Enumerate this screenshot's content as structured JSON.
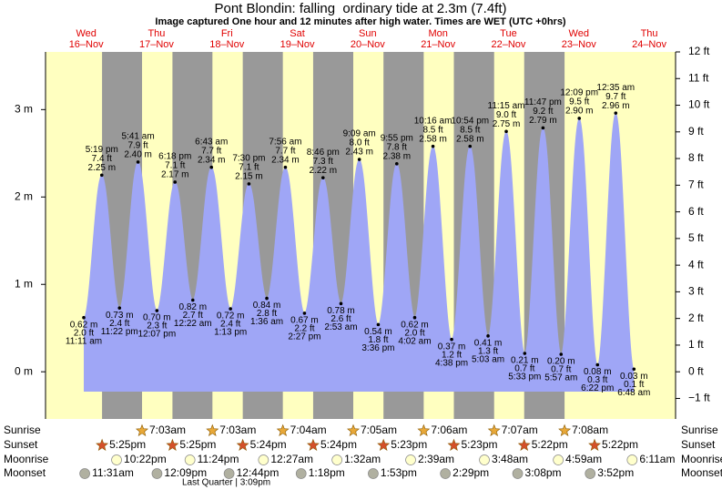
{
  "chart_data": {
    "type": "tide",
    "title": "Pont Blondin: falling  ordinary tide at 2.3m (7.4ft)",
    "subtitle": "Image captured One hour and 12 minutes after high water. Times are WET (UTC +0hrs)",
    "days": [
      {
        "weekday": "Wed",
        "date": "16–Nov"
      },
      {
        "weekday": "Thu",
        "date": "17–Nov"
      },
      {
        "weekday": "Fri",
        "date": "18–Nov"
      },
      {
        "weekday": "Sat",
        "date": "19–Nov"
      },
      {
        "weekday": "Sun",
        "date": "20–Nov"
      },
      {
        "weekday": "Mon",
        "date": "21–Nov"
      },
      {
        "weekday": "Tue",
        "date": "22–Nov"
      },
      {
        "weekday": "Wed",
        "date": "23–Nov"
      },
      {
        "weekday": "Thu",
        "date": "24–Nov"
      }
    ],
    "x": [
      "11:11 am",
      "5:19 pm",
      "11:22 pm",
      "5:41 am",
      "12:07 pm",
      "6:18 pm",
      "12:22 am",
      "6:43 am",
      "1:13 pm",
      "7:30 pm",
      "1:36 am",
      "7:56 am",
      "2:27 pm",
      "8:46 pm",
      "2:53 am",
      "9:09 am",
      "3:36 pm",
      "9:55 pm",
      "4:02 am",
      "10:16 am",
      "4:38 pm",
      "10:54 pm",
      "5:03 am",
      "11:15 am",
      "5:33 pm",
      "11:47 pm",
      "5:57 am",
      "12:09 pm",
      "6:22 pm",
      "12:35 am",
      "6:48 am"
    ],
    "values": [
      0.62,
      2.25,
      0.73,
      2.4,
      0.7,
      2.17,
      0.82,
      2.34,
      0.72,
      2.15,
      0.84,
      2.34,
      0.67,
      2.22,
      0.78,
      2.43,
      0.54,
      2.38,
      0.62,
      2.58,
      0.37,
      2.58,
      0.41,
      2.75,
      0.21,
      2.79,
      0.2,
      2.9,
      0.08,
      2.96,
      0.03
    ],
    "value_labels": [
      "0.62 m",
      "2.25 m",
      "0.73 m",
      "2.40 m",
      "0.70 m",
      "2.17 m",
      "0.82 m",
      "2.34 m",
      "0.72 m",
      "2.15 m",
      "0.84 m",
      "2.34 m",
      "0.67 m",
      "2.22 m",
      "0.78 m",
      "2.43 m",
      "0.54 m",
      "2.38 m",
      "0.62 m",
      "2.58 m",
      "0.37 m",
      "2.58 m",
      "0.41 m",
      "2.75 m",
      "0.21 m",
      "2.79 m",
      "0.20 m",
      "2.90 m",
      "0.08 m",
      "2.96 m",
      "0.03 m"
    ],
    "ft_labels": [
      "2.0 ft",
      "7.4 ft",
      "2.4 ft",
      "7.9 ft",
      "2.3 ft",
      "7.1 ft",
      "2.7 ft",
      "7.7 ft",
      "2.4 ft",
      "7.1 ft",
      "2.8 ft",
      "7.7 ft",
      "2.2 ft",
      "7.3 ft",
      "2.6 ft",
      "8.0 ft",
      "1.8 ft",
      "7.8 ft",
      "2.0 ft",
      "8.5 ft",
      "1.2 ft",
      "8.5 ft",
      "1.3 ft",
      "9.0 ft",
      "0.7 ft",
      "9.2 ft",
      "0.7 ft",
      "9.5 ft",
      "0.3 ft",
      "9.7 ft",
      "0.1 ft"
    ],
    "color": "#9fa6f6",
    "ylim": [
      -0.54,
      3.66
    ],
    "yticks": [
      {
        "value": 0,
        "label": "0 m"
      },
      {
        "value": 1,
        "label": "1 m"
      },
      {
        "value": 2,
        "label": "2 m"
      },
      {
        "value": 3,
        "label": "3 m"
      }
    ],
    "y2lim": [
      -1.77,
      12.0
    ],
    "y2ticks": [
      {
        "value": -1,
        "label": "−1 ft"
      },
      {
        "value": 0,
        "label": "0 ft"
      },
      {
        "value": 1,
        "label": "1 ft"
      },
      {
        "value": 2,
        "label": "2 ft"
      },
      {
        "value": 3,
        "label": "3 ft"
      },
      {
        "value": 4,
        "label": "4 ft"
      },
      {
        "value": 5,
        "label": "5 ft"
      },
      {
        "value": 6,
        "label": "6 ft"
      },
      {
        "value": 7,
        "label": "7 ft"
      },
      {
        "value": 8,
        "label": "8 ft"
      },
      {
        "value": 9,
        "label": "9 ft"
      },
      {
        "value": 10,
        "label": "10 ft"
      },
      {
        "value": 11,
        "label": "11 ft"
      },
      {
        "value": 12,
        "label": "12 ft"
      }
    ],
    "rows": {
      "sunrise": {
        "label": "Sunrise",
        "times": [
          null,
          "7:03am",
          "7:03am",
          "7:04am",
          "7:05am",
          "7:06am",
          "7:07am",
          "7:08am",
          null
        ]
      },
      "sunset": {
        "label": "Sunset",
        "times": [
          "5:25pm",
          "5:25pm",
          "5:24pm",
          "5:24pm",
          "5:23pm",
          "5:23pm",
          "5:22pm",
          "5:22pm",
          null
        ]
      },
      "moonrise": {
        "label": "Moonrise",
        "times": [
          "10:22pm",
          "11:24pm",
          null,
          "12:27am",
          "1:32am",
          "2:39am",
          "3:48am",
          "4:59am",
          "6:11am"
        ]
      },
      "moonset": {
        "label": "Moonset",
        "times": [
          "11:31am",
          "12:09pm",
          "12:44pm",
          "1:18pm",
          "1:53pm",
          "2:29pm",
          "3:08pm",
          "3:52pm",
          null
        ]
      }
    },
    "moon_phase": "Last Quarter | 3:09pm"
  }
}
